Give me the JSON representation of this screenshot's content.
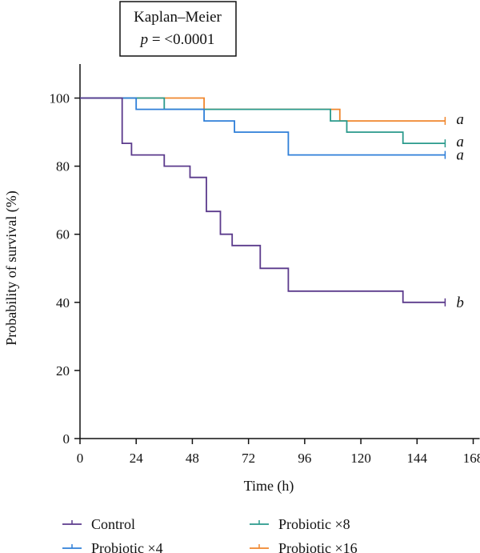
{
  "chart_data": {
    "type": "line",
    "step": true,
    "title": "",
    "annotation_box": {
      "line1": "Kaplan–Meier",
      "line2_italic": "p",
      "line2_rest": " = <0.0001"
    },
    "xlabel": "Time (h)",
    "ylabel": "Probability of survival (%)",
    "xlim": [
      0,
      175
    ],
    "ylim": [
      0,
      110
    ],
    "x_ticks": [
      0,
      24,
      48,
      72,
      96,
      120,
      144,
      168
    ],
    "y_ticks": [
      0,
      20,
      40,
      60,
      80,
      100
    ],
    "legend_position": "bottom",
    "series": [
      {
        "name": "Control",
        "color": "#5b3a8c",
        "label": "b",
        "points": [
          [
            0,
            100
          ],
          [
            18,
            100
          ],
          [
            18,
            86.7
          ],
          [
            22,
            86.7
          ],
          [
            22,
            83.3
          ],
          [
            36,
            83.3
          ],
          [
            36,
            80
          ],
          [
            47,
            80
          ],
          [
            47,
            76.7
          ],
          [
            54,
            76.7
          ],
          [
            54,
            66.7
          ],
          [
            60,
            66.7
          ],
          [
            60,
            60
          ],
          [
            65,
            60
          ],
          [
            65,
            56.7
          ],
          [
            77,
            56.7
          ],
          [
            77,
            50
          ],
          [
            89,
            50
          ],
          [
            89,
            43.3
          ],
          [
            138,
            43.3
          ],
          [
            138,
            40
          ],
          [
            156,
            40
          ]
        ]
      },
      {
        "name": "Probiotic ×4",
        "color": "#2f7fd8",
        "label": "a",
        "points": [
          [
            0,
            100
          ],
          [
            24,
            100
          ],
          [
            24,
            96.7
          ],
          [
            53,
            96.7
          ],
          [
            53,
            93.3
          ],
          [
            66,
            93.3
          ],
          [
            66,
            90
          ],
          [
            89,
            90
          ],
          [
            89,
            83.3
          ],
          [
            156,
            83.3
          ]
        ]
      },
      {
        "name": "Probiotic ×8",
        "color": "#2a9a8c",
        "label": "a",
        "points": [
          [
            0,
            100
          ],
          [
            36,
            100
          ],
          [
            36,
            96.7
          ],
          [
            107,
            96.7
          ],
          [
            107,
            93.3
          ],
          [
            114,
            93.3
          ],
          [
            114,
            90
          ],
          [
            138,
            90
          ],
          [
            138,
            86.7
          ],
          [
            156,
            86.7
          ]
        ]
      },
      {
        "name": "Probiotic ×16",
        "color": "#f0862d",
        "label": "a",
        "points": [
          [
            0,
            100
          ],
          [
            53,
            100
          ],
          [
            53,
            96.7
          ],
          [
            111,
            96.7
          ],
          [
            111,
            93.3
          ],
          [
            156,
            93.3
          ]
        ]
      }
    ]
  }
}
